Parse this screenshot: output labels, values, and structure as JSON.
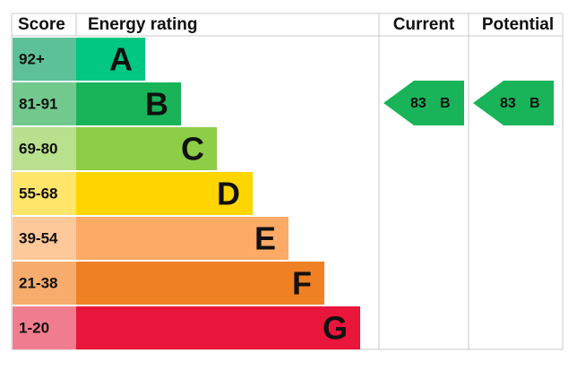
{
  "header": {
    "score": "Score",
    "rating": "Energy rating",
    "current": "Current",
    "potential": "Potential"
  },
  "bands": [
    {
      "score": "92+",
      "letter": "A",
      "color": "#00c781",
      "score_color": "#5cc198"
    },
    {
      "score": "81-91",
      "letter": "B",
      "color": "#19b459",
      "score_color": "#72c98e"
    },
    {
      "score": "69-80",
      "letter": "C",
      "color": "#8dce46",
      "score_color": "#b8e08d"
    },
    {
      "score": "55-68",
      "letter": "D",
      "color": "#ffd500",
      "score_color": "#ffe66b"
    },
    {
      "score": "39-54",
      "letter": "E",
      "color": "#fcaa65",
      "score_color": "#fdc99a"
    },
    {
      "score": "21-38",
      "letter": "F",
      "color": "#ef8023",
      "score_color": "#f5ac6c"
    },
    {
      "score": "1-20",
      "letter": "G",
      "color": "#e9153b",
      "score_color": "#f07d8f"
    }
  ],
  "current": {
    "value": "83",
    "letter": "B"
  },
  "potential": {
    "value": "83",
    "letter": "B"
  }
}
